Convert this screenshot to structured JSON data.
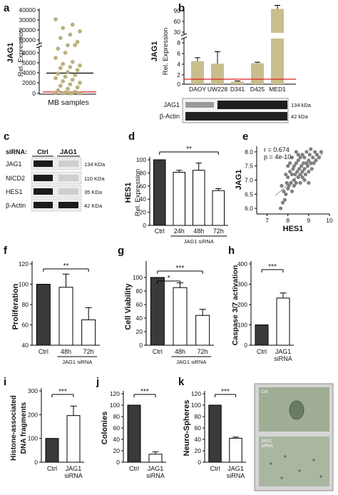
{
  "panel_letters": [
    "a",
    "b",
    "c",
    "d",
    "e",
    "f",
    "g",
    "h",
    "i",
    "j",
    "k"
  ],
  "colors": {
    "tan": "#c9bd8e",
    "dark": "#3a3a3a",
    "dot": "#bfb27c",
    "red": "#e02020",
    "scatter": "#7f7f7f",
    "fit": "#b0b0b0"
  },
  "chart_data": [
    {
      "id": "a",
      "type": "scatter",
      "ylabel": "Rel. Expression",
      "gene": "JAG1",
      "xlabel": "MB samples",
      "yticks": [
        "40000",
        "30000",
        "20000",
        "10000",
        "8000",
        "6000",
        "4000",
        "2000",
        "0"
      ],
      "points": [
        33000,
        29000,
        26500,
        24000,
        21500,
        19000,
        16000,
        13500,
        11000,
        9500,
        8000,
        7000,
        6200,
        5800,
        5500,
        5200,
        5000,
        4600,
        4200,
        3900,
        3600,
        3300,
        3000,
        2700,
        2400,
        2100,
        1800,
        1500,
        1200,
        900,
        600,
        300,
        200,
        120,
        80,
        50,
        30,
        20
      ],
      "upper_line": 4000,
      "lower_line": 300
    },
    {
      "id": "b",
      "type": "bar",
      "gene": "JAG1",
      "ylabel": "Rel. Expression",
      "yticks": [
        "90",
        "60",
        "30",
        "8",
        "6",
        "4",
        "2",
        "0"
      ],
      "categories": [
        "DAOY",
        "UW228",
        "D341",
        "D425",
        "MED1"
      ],
      "values": [
        4.6,
        4.1,
        0.5,
        4.2,
        95
      ],
      "errors": [
        0.7,
        2.4,
        0.15,
        0.2,
        10
      ],
      "ref_line": 1,
      "blot": {
        "rows": [
          "JAG1",
          "β-Actin"
        ],
        "sizes": [
          "134 kDa",
          "42 kDa"
        ]
      }
    },
    {
      "id": "c",
      "type": "blot",
      "header_label": "siRNA:",
      "lanes": [
        "Ctrl",
        "JAG1"
      ],
      "rows": [
        "JAG1",
        "NICD2",
        "HES1",
        "β-Actin"
      ],
      "sizes": [
        "134 KDa",
        "110 KDa",
        "35 KDa",
        "42 KDa"
      ]
    },
    {
      "id": "d",
      "type": "bar",
      "gene": "HES1",
      "ylabel": "Rel. Expression",
      "yticks": [
        "0",
        "20",
        "40",
        "60",
        "80",
        "100"
      ],
      "ylim": [
        0,
        100
      ],
      "categories": [
        "Ctrl",
        "24h",
        "48h",
        "72h"
      ],
      "values": [
        100,
        81,
        84,
        53
      ],
      "errors": [
        0,
        3,
        11,
        3
      ],
      "group_label": "JAG1 siRNA",
      "sig": [
        "**"
      ]
    },
    {
      "id": "e",
      "type": "scatter",
      "xlabel": "HES1",
      "ylabel": "JAG1",
      "r_text": "r = 0.674",
      "p_text": "p = 4e-10",
      "xticks": [
        "7",
        "8",
        "9",
        "10"
      ],
      "yticks": [
        "6.0",
        "6.5",
        "7.0",
        "7.5",
        "8.0"
      ],
      "xlim": [
        6.5,
        10
      ],
      "ylim": [
        5.8,
        8.2
      ],
      "points": [
        [
          7.65,
          6.0
        ],
        [
          7.75,
          6.2
        ],
        [
          7.8,
          6.6
        ],
        [
          7.85,
          6.3
        ],
        [
          7.9,
          6.5
        ],
        [
          7.95,
          6.9
        ],
        [
          8.0,
          6.7
        ],
        [
          8.0,
          7.1
        ],
        [
          8.05,
          6.8
        ],
        [
          8.1,
          7.3
        ],
        [
          8.15,
          6.9
        ],
        [
          8.2,
          7.2
        ],
        [
          8.2,
          6.6
        ],
        [
          8.25,
          7.4
        ],
        [
          8.3,
          7.0
        ],
        [
          8.3,
          7.5
        ],
        [
          8.35,
          7.2
        ],
        [
          8.4,
          6.9
        ],
        [
          8.4,
          7.6
        ],
        [
          8.45,
          7.3
        ],
        [
          8.5,
          7.1
        ],
        [
          8.5,
          7.7
        ],
        [
          8.55,
          7.4
        ],
        [
          8.6,
          7.2
        ],
        [
          8.6,
          7.8
        ],
        [
          8.65,
          7.5
        ],
        [
          8.7,
          7.3
        ],
        [
          8.7,
          7.9
        ],
        [
          8.75,
          7.6
        ],
        [
          8.8,
          7.4
        ],
        [
          8.8,
          7.8
        ],
        [
          8.85,
          7.2
        ],
        [
          8.9,
          7.6
        ],
        [
          8.9,
          8.0
        ],
        [
          8.95,
          7.5
        ],
        [
          9.0,
          7.7
        ],
        [
          9.0,
          7.3
        ],
        [
          9.05,
          7.9
        ],
        [
          9.1,
          7.6
        ],
        [
          9.1,
          8.1
        ],
        [
          9.15,
          7.4
        ],
        [
          9.2,
          7.8
        ],
        [
          9.25,
          7.6
        ],
        [
          9.3,
          8.0
        ],
        [
          9.35,
          7.7
        ],
        [
          9.4,
          7.9
        ],
        [
          9.5,
          7.8
        ],
        [
          9.6,
          8.0
        ],
        [
          8.2,
          7.8
        ],
        [
          8.4,
          8.0
        ],
        [
          8.0,
          7.5
        ],
        [
          7.9,
          7.2
        ],
        [
          8.6,
          6.9
        ],
        [
          8.8,
          7.0
        ],
        [
          9.0,
          6.9
        ],
        [
          8.3,
          6.8
        ],
        [
          7.7,
          6.8
        ],
        [
          8.1,
          7.6
        ],
        [
          8.5,
          7.9
        ],
        [
          8.7,
          7.1
        ]
      ]
    },
    {
      "id": "f",
      "type": "bar",
      "ylabel": "Proliferation",
      "yticks": [
        "40",
        "60",
        "80",
        "100",
        "120"
      ],
      "ylim": [
        40,
        120
      ],
      "categories": [
        "Ctrl",
        "48h",
        "72h"
      ],
      "values": [
        100,
        97,
        65
      ],
      "errors": [
        0,
        13,
        12
      ],
      "group_label": "JAG1 siRNA",
      "sig": [
        "**"
      ]
    },
    {
      "id": "g",
      "type": "bar",
      "ylabel": "Cell Viability",
      "yticks": [
        "0",
        "20",
        "40",
        "60",
        "80",
        "100"
      ],
      "ylim": [
        0,
        120
      ],
      "categories": [
        "Ctrl",
        "48h",
        "72h"
      ],
      "values": [
        100,
        85,
        44
      ],
      "errors": [
        0,
        7,
        9
      ],
      "group_label": "JAG1 siRNA",
      "sig": [
        "*",
        "***"
      ]
    },
    {
      "id": "h",
      "type": "bar",
      "ylabel": "Caspase 3/7 activation",
      "yticks": [
        "0",
        "100",
        "200",
        "300",
        "400"
      ],
      "ylim": [
        0,
        400
      ],
      "categories": [
        "Ctrl",
        "JAG1 siRNA"
      ],
      "values": [
        100,
        232
      ],
      "errors": [
        0,
        25
      ],
      "sig": [
        "***"
      ]
    },
    {
      "id": "i",
      "type": "bar",
      "ylabel": "Histone-associated DNA fragments",
      "yticks": [
        "0",
        "100",
        "200",
        "300"
      ],
      "ylim": [
        0,
        300
      ],
      "categories": [
        "Ctrl",
        "JAG1 siRNA"
      ],
      "values": [
        100,
        196
      ],
      "errors": [
        0,
        40
      ],
      "sig": [
        "***"
      ]
    },
    {
      "id": "j",
      "type": "bar",
      "ylabel": "Colonies",
      "yticks": [
        "0",
        "20",
        "40",
        "60",
        "80",
        "100",
        "120"
      ],
      "ylim": [
        0,
        120
      ],
      "categories": [
        "Ctrl",
        "JAG1 siRNA"
      ],
      "values": [
        100,
        14
      ],
      "errors": [
        0,
        4
      ],
      "sig": [
        "***"
      ]
    },
    {
      "id": "k",
      "type": "bar",
      "ylabel": "Neuro-Spheres",
      "yticks": [
        "0",
        "20",
        "40",
        "60",
        "80",
        "100",
        "120"
      ],
      "ylim": [
        0,
        120
      ],
      "categories": [
        "Ctrl",
        "JAG1 siRNA"
      ],
      "values": [
        100,
        42
      ],
      "errors": [
        0,
        2
      ],
      "sig": [
        "***"
      ],
      "images": [
        "Ctrl",
        "JAG1 siRNA"
      ]
    }
  ]
}
